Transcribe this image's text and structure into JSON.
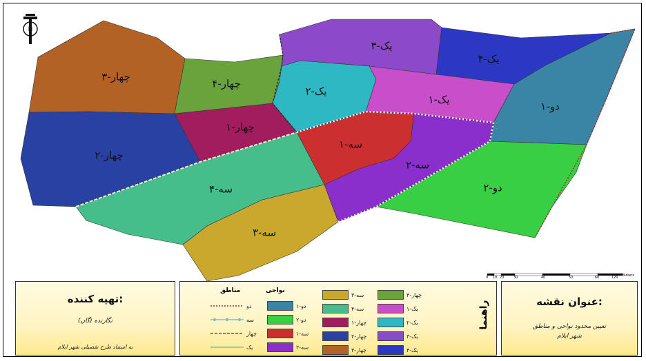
{
  "map": {
    "regions": [
      {
        "id": "chahar-3",
        "label": "چهار-۳",
        "color": "#b26225"
      },
      {
        "id": "chahar-4",
        "label": "چهار-۴",
        "color": "#6aa33b"
      },
      {
        "id": "chahar-1",
        "label": "چهار-۱",
        "color": "#a21d5e"
      },
      {
        "id": "chahar-2",
        "label": "چهار-۲",
        "color": "#2a41a4"
      },
      {
        "id": "yek-3",
        "label": "یک-۳",
        "color": "#8c49c9"
      },
      {
        "id": "yek-4",
        "label": "یک-۴",
        "color": "#2c38c3"
      },
      {
        "id": "yek-2",
        "label": "یک-۲",
        "color": "#2db8c3"
      },
      {
        "id": "yek-1",
        "label": "یک-۱",
        "color": "#c84fc9"
      },
      {
        "id": "do-1",
        "label": "دو-۱",
        "color": "#3a84a6"
      },
      {
        "id": "do-2",
        "label": "دو-۲",
        "color": "#38cf45"
      },
      {
        "id": "se-1",
        "label": "سه-۱",
        "color": "#cc2f30"
      },
      {
        "id": "se-2",
        "label": "سه-۲",
        "color": "#8a2fcc"
      },
      {
        "id": "se-4",
        "label": "سه-۴",
        "color": "#45be8b"
      },
      {
        "id": "se-3",
        "label": "سه-۳",
        "color": "#c9a82d"
      }
    ],
    "scalebar": {
      "ticks": [
        "0",
        "10",
        "20",
        "30",
        "40",
        "50",
        "60",
        "120"
      ],
      "unit": "Meters"
    }
  },
  "panels": {
    "preparer": {
      "title": "تهیه کننده:",
      "author": "نگارنده (گان)",
      "source": "به استناد طرح تفصیلی شهر ایلام"
    },
    "legend": {
      "title": "راهنما",
      "nawahi_header": "نواحی",
      "manateq_header": "مناطق",
      "columns": [
        [
          {
            "label": "چهار-۴",
            "color": "#6aa33b"
          },
          {
            "label": "یک-۱",
            "color": "#c84fc9"
          },
          {
            "label": "یک-۲",
            "color": "#2db8c3"
          },
          {
            "label": "یک-۳",
            "color": "#8c49c9"
          },
          {
            "label": "یک-۴",
            "color": "#2c38c3"
          }
        ],
        [
          {
            "label": "سه-۳",
            "color": "#c9a82d"
          },
          {
            "label": "سه-۴",
            "color": "#45be8b"
          },
          {
            "label": "چهار-۱",
            "color": "#a21d5e"
          },
          {
            "label": "چهار-۲",
            "color": "#2a41a4"
          },
          {
            "label": "چهار-۳",
            "color": "#b26225"
          }
        ],
        [
          {
            "label": "",
            "color": ""
          },
          {
            "label": "دو-۱",
            "color": "#3a84a6"
          },
          {
            "label": "دو-۲",
            "color": "#38cf45"
          },
          {
            "label": "سه-۱",
            "color": "#cc2f30"
          },
          {
            "label": "سه-۲",
            "color": "#8a2fcc"
          }
        ]
      ],
      "zones": [
        {
          "label": "دو",
          "style": "do"
        },
        {
          "label": "سه",
          "style": "se"
        },
        {
          "label": "چهار",
          "style": "chahar"
        },
        {
          "label": "یک",
          "style": "yek"
        }
      ]
    },
    "title_panel": {
      "title": "عنوان نقشه:",
      "subtitle_1": "تعیین محدود نواحی و مناطق",
      "subtitle_2": "شهر ایلام"
    }
  }
}
